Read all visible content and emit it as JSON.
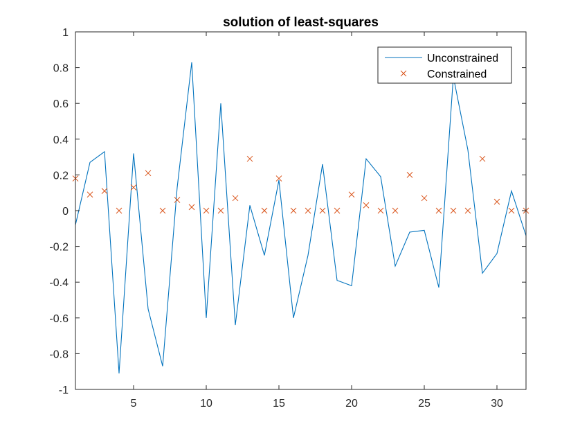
{
  "chart_data": {
    "type": "line",
    "title": "solution of least-squares",
    "xlabel": "",
    "ylabel": "",
    "xlim": [
      1,
      32
    ],
    "ylim": [
      -1,
      1
    ],
    "xticks": [
      5,
      10,
      15,
      20,
      25,
      30
    ],
    "yticks": [
      -1,
      -0.8,
      -0.6,
      -0.4,
      -0.2,
      0,
      0.2,
      0.4,
      0.6,
      0.8,
      1
    ],
    "ytick_labels": [
      "-1",
      "-0.8",
      "-0.6",
      "-0.4",
      "-0.2",
      "0",
      "0.2",
      "0.4",
      "0.6",
      "0.8",
      "1"
    ],
    "grid": false,
    "legend_position": "top-right",
    "x": [
      1,
      2,
      3,
      4,
      5,
      6,
      7,
      8,
      9,
      10,
      11,
      12,
      13,
      14,
      15,
      16,
      17,
      18,
      19,
      20,
      21,
      22,
      23,
      24,
      25,
      26,
      27,
      28,
      29,
      30,
      31,
      32
    ],
    "series": [
      {
        "name": "Unconstrained",
        "style": "line",
        "color": "#0072BD",
        "values": [
          -0.08,
          0.27,
          0.33,
          -0.91,
          0.32,
          -0.55,
          -0.87,
          0.13,
          0.83,
          -0.6,
          0.6,
          -0.64,
          0.03,
          -0.25,
          0.17,
          -0.6,
          -0.25,
          0.26,
          -0.39,
          -0.42,
          0.29,
          0.19,
          -0.31,
          -0.12,
          -0.11,
          -0.43,
          0.75,
          0.34,
          -0.35,
          -0.24,
          0.11,
          -0.14
        ]
      },
      {
        "name": "Constrained",
        "style": "marker-x",
        "color": "#D95319",
        "values": [
          0.18,
          0.09,
          0.11,
          0.0,
          0.13,
          0.21,
          0.0,
          0.06,
          0.02,
          0.0,
          0.0,
          0.07,
          0.29,
          0.0,
          0.18,
          0.0,
          0.0,
          0.0,
          0.0,
          0.09,
          0.03,
          0.0,
          0.0,
          0.2,
          0.07,
          0.0,
          0.0,
          0.0,
          0.29,
          0.05,
          0.0,
          0.0
        ]
      }
    ]
  }
}
